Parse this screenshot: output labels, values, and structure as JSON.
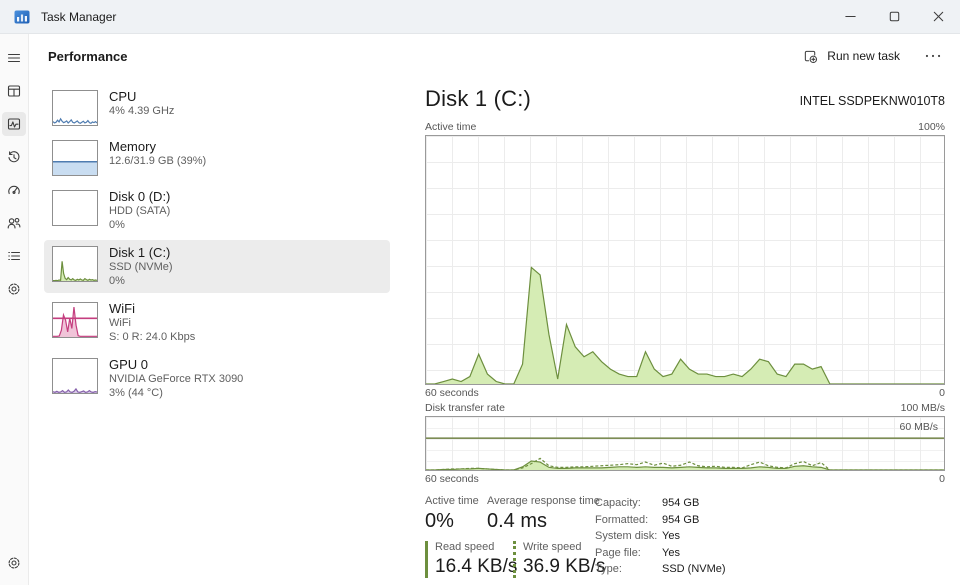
{
  "window": {
    "title": "Task Manager",
    "controls": [
      "minimize",
      "maximize",
      "close"
    ]
  },
  "nav": {
    "selected": "performance",
    "items": [
      {
        "name": "menu"
      },
      {
        "name": "processes"
      },
      {
        "name": "performance"
      },
      {
        "name": "app-history"
      },
      {
        "name": "startup-apps"
      },
      {
        "name": "users"
      },
      {
        "name": "details"
      },
      {
        "name": "services"
      },
      {
        "name": "settings",
        "position": "bottom"
      }
    ]
  },
  "header": {
    "title": "Performance",
    "run_new_task_label": "Run new task"
  },
  "sidebar": {
    "items": [
      {
        "id": "cpu",
        "title": "CPU",
        "lines": [
          "4% 4.39 GHz"
        ]
      },
      {
        "id": "memory",
        "title": "Memory",
        "lines": [
          "12.6/31.9 GB (39%)"
        ]
      },
      {
        "id": "disk0",
        "title": "Disk 0 (D:)",
        "lines": [
          "HDD (SATA)",
          "0%"
        ]
      },
      {
        "id": "disk1",
        "title": "Disk 1 (C:)",
        "lines": [
          "SSD (NVMe)",
          "0%"
        ],
        "selected": true
      },
      {
        "id": "wifi",
        "title": "WiFi",
        "lines": [
          "WiFi",
          "S: 0 R: 24.0 Kbps"
        ]
      },
      {
        "id": "gpu",
        "title": "GPU 0",
        "lines": [
          "NVIDIA GeForce RTX 3090",
          "3% (44 °C)"
        ]
      }
    ]
  },
  "main": {
    "title": "Disk 1 (C:)",
    "device": "INTEL SSDPEKNW010T8",
    "chart1": {
      "label": "Active time",
      "max_label": "100%",
      "x_left": "60 seconds",
      "x_right": "0"
    },
    "chart2": {
      "label": "Disk transfer rate",
      "max_label": "100 MB/s",
      "scale_label": "60 MB/s",
      "x_left": "60 seconds",
      "x_right": "0"
    },
    "stats": {
      "active_time": {
        "label": "Active time",
        "value": "0%"
      },
      "avg_response": {
        "label": "Average response time",
        "value": "0.4 ms"
      },
      "read_speed": {
        "label": "Read speed",
        "value": "16.4 KB/s"
      },
      "write_speed": {
        "label": "Write speed",
        "value": "36.9 KB/s"
      },
      "details": [
        {
          "label": "Capacity:",
          "value": "954 GB"
        },
        {
          "label": "Formatted:",
          "value": "954 GB"
        },
        {
          "label": "System disk:",
          "value": "Yes"
        },
        {
          "label": "Page file:",
          "value": "Yes"
        },
        {
          "label": "Type:",
          "value": "SSD (NVMe)"
        }
      ]
    }
  },
  "colors": {
    "disk_green_stroke": "#6d8f3e",
    "disk_green_fill": "#d5ecb4",
    "cpu_blue": "#4f7cb0",
    "memory_fill": "#c9ddf1",
    "wifi_pink": "#c43e7f",
    "gpu_purple": "#8661ab",
    "selected_item_bg": "#ececec",
    "titlebar_bg": "#eff2f5"
  },
  "chart_data": [
    {
      "id": "disk1-active-time",
      "type": "area",
      "title": "Active time",
      "ylim": [
        0,
        100
      ],
      "unit": "%",
      "x_axis": "last 60 seconds (left = 60 s ago, right = 0)",
      "x_label_left": "60 seconds",
      "x_label_right": "0",
      "grid": true,
      "series": [
        {
          "name": "Active time",
          "stroke": "#6d8f3e",
          "fill": "#d5ecb4",
          "values": [
            0,
            0,
            1,
            2,
            1,
            3,
            12,
            4,
            1,
            0,
            0,
            8,
            47,
            44,
            20,
            2,
            24,
            15,
            11,
            13,
            9,
            6,
            4,
            3,
            3,
            13,
            6,
            3,
            4,
            10,
            6,
            4,
            4,
            3,
            3,
            4,
            3,
            6,
            10,
            9,
            4,
            3,
            8,
            8,
            6,
            7,
            0,
            0,
            0,
            0,
            0,
            0,
            0,
            0,
            0,
            0,
            0,
            0,
            0,
            0
          ]
        }
      ]
    },
    {
      "id": "disk1-transfer-rate",
      "type": "area",
      "title": "Disk transfer rate",
      "ylim": [
        0,
        100
      ],
      "unit": "MB/s",
      "x_axis": "last 60 seconds (left = 60 s ago, right = 0)",
      "x_label_left": "60 seconds",
      "x_label_right": "0",
      "grid": true,
      "hline": {
        "value": 60,
        "label": "60 MB/s",
        "color": "#7c8c54"
      },
      "series": [
        {
          "name": "Write speed",
          "stroke": "#6d8f3e",
          "fill": "#d5ecb4",
          "values": [
            0,
            0,
            1,
            1,
            2,
            2,
            3,
            2,
            1,
            0,
            0,
            6,
            17,
            15,
            5,
            3,
            3,
            4,
            4,
            4,
            4,
            5,
            6,
            6,
            5,
            6,
            5,
            5,
            4,
            5,
            6,
            5,
            4,
            4,
            3,
            3,
            3,
            4,
            6,
            5,
            3,
            3,
            7,
            8,
            6,
            5,
            0,
            0,
            0,
            0,
            0,
            0,
            0,
            0,
            0,
            0,
            0,
            0,
            0,
            0
          ]
        },
        {
          "name": "Read speed",
          "stroke": "#6d8f3e",
          "fill": "none",
          "dash": "3,2",
          "values": [
            0,
            0,
            1,
            2,
            2,
            3,
            3,
            2,
            1,
            0,
            0,
            4,
            12,
            22,
            8,
            5,
            5,
            6,
            6,
            7,
            8,
            9,
            10,
            12,
            10,
            15,
            9,
            13,
            7,
            9,
            15,
            8,
            6,
            7,
            5,
            5,
            4,
            10,
            15,
            8,
            5,
            4,
            12,
            16,
            8,
            14,
            0,
            0,
            0,
            0,
            0,
            0,
            0,
            0,
            0,
            0,
            0,
            0,
            0,
            0
          ]
        }
      ]
    },
    {
      "id": "cpu-mini",
      "type": "line",
      "title": "CPU utilization mini graph",
      "ylim": [
        0,
        100
      ],
      "series": [
        {
          "name": "CPU",
          "stroke": "#4f7cb0",
          "fill": "none",
          "values": [
            10,
            6,
            8,
            14,
            9,
            18,
            11,
            7,
            9,
            12,
            6,
            10,
            15,
            8,
            6,
            9,
            12,
            7,
            5,
            8,
            11,
            6,
            8,
            13,
            7,
            5,
            9,
            7,
            10,
            6
          ]
        }
      ]
    },
    {
      "id": "memory-mini",
      "type": "fill",
      "title": "Memory usage mini graph",
      "ylim": [
        0,
        100
      ],
      "fill_percent": 39,
      "fill": "#c9ddf1",
      "stroke": "#4f7cb0"
    },
    {
      "id": "disk0-mini",
      "type": "area",
      "title": "Disk 0 active time mini graph (idle)",
      "ylim": [
        0,
        100
      ],
      "series": [
        {
          "name": "Disk 0 active time",
          "stroke": "#6d8f3e",
          "fill": "#d5ecb4",
          "values": [
            0,
            0,
            0,
            0,
            0,
            0,
            0,
            0,
            0,
            0,
            0,
            0
          ]
        }
      ]
    },
    {
      "id": "disk1-mini",
      "type": "area",
      "title": "Disk 1 active time mini graph",
      "ylim": [
        0,
        100
      ],
      "series": [
        {
          "name": "Disk 1 active time",
          "stroke": "#6d8f3e",
          "fill": "#d5ecb4",
          "values": [
            1,
            1,
            2,
            1,
            3,
            2,
            58,
            22,
            8,
            4,
            10,
            5,
            3,
            7,
            3,
            2,
            5,
            3,
            6,
            3,
            2,
            7,
            4,
            2,
            5,
            3,
            4,
            2,
            3,
            2
          ]
        }
      ]
    },
    {
      "id": "wifi-mini",
      "type": "area",
      "title": "WiFi throughput mini graph",
      "ylim": [
        0,
        100
      ],
      "hline": {
        "value": 55,
        "color": "#c43e7f"
      },
      "series": [
        {
          "name": "WiFi throughput",
          "stroke": "#c43e7f",
          "fill": "#f0c4d8",
          "values": [
            2,
            2,
            2,
            3,
            20,
            65,
            50,
            15,
            55,
            25,
            88,
            35,
            4,
            2,
            2,
            2,
            2,
            2,
            2,
            2,
            2,
            2
          ]
        }
      ]
    },
    {
      "id": "gpu-mini",
      "type": "area",
      "title": "GPU utilization mini graph",
      "ylim": [
        0,
        100
      ],
      "series": [
        {
          "name": "GPU",
          "stroke": "#8661ab",
          "fill": "#d9cbe8",
          "values": [
            4,
            2,
            5,
            2,
            3,
            7,
            2,
            3,
            9,
            3,
            2,
            5,
            12,
            3,
            2,
            4,
            6,
            2,
            3,
            7,
            3,
            2,
            4,
            3
          ]
        }
      ]
    }
  ]
}
